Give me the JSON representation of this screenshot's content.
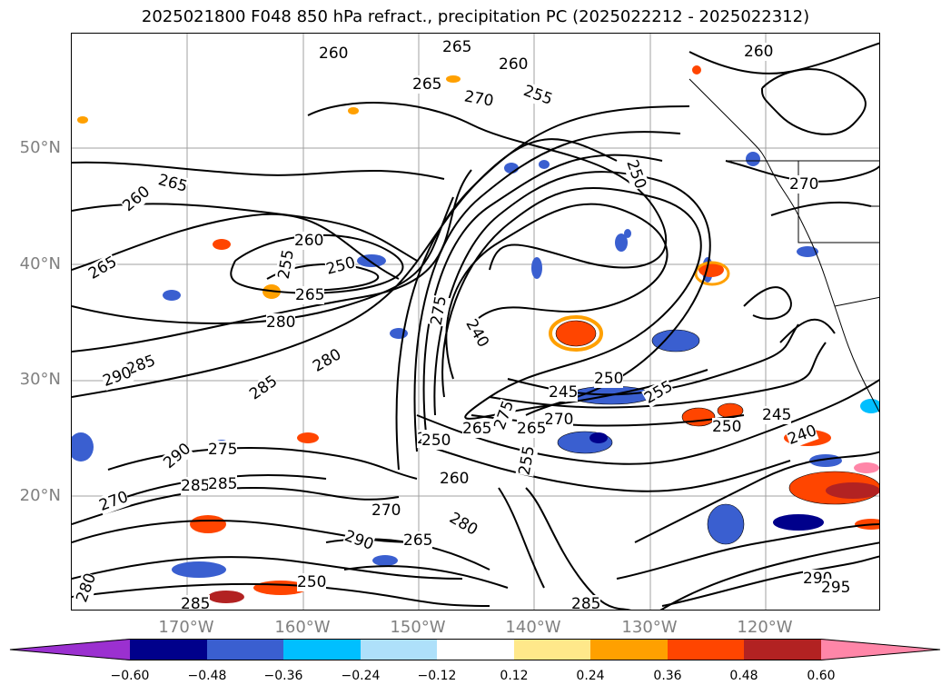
{
  "title": "2025021800 F048 850 hPa refract., precipitation PC (2025022212 - 2025022312)",
  "map": {
    "lat_labels": [
      "50°N",
      "40°N",
      "30°N",
      "20°N"
    ],
    "lon_labels": [
      "170°W",
      "160°W",
      "150°W",
      "140°W",
      "130°W",
      "120°W"
    ],
    "contour_labels": [
      "265",
      "260",
      "270",
      "255",
      "260",
      "250",
      "265",
      "265",
      "260",
      "265",
      "260",
      "250",
      "255",
      "265",
      "280",
      "285",
      "290",
      "280",
      "285",
      "275",
      "290",
      "285",
      "275",
      "270",
      "265",
      "250",
      "240",
      "245",
      "250",
      "255",
      "270",
      "265",
      "275",
      "250",
      "260",
      "280",
      "255",
      "250",
      "245",
      "240",
      "260",
      "290",
      "285",
      "265",
      "250",
      "285",
      "285",
      "270",
      "290",
      "295",
      "280",
      "270"
    ]
  },
  "colorbar": {
    "ticks": [
      "−0.60",
      "−0.48",
      "−0.36",
      "−0.24",
      "−0.12",
      "0.12",
      "0.24",
      "0.36",
      "0.48",
      "0.60"
    ],
    "colors": [
      "#9b30d0",
      "#00008b",
      "#3a5fd0",
      "#00bfff",
      "#aee0fa",
      "#ffffff",
      "#ffe88a",
      "#ffa000",
      "#ff4500",
      "#b22222",
      "#ff86a8"
    ]
  }
}
